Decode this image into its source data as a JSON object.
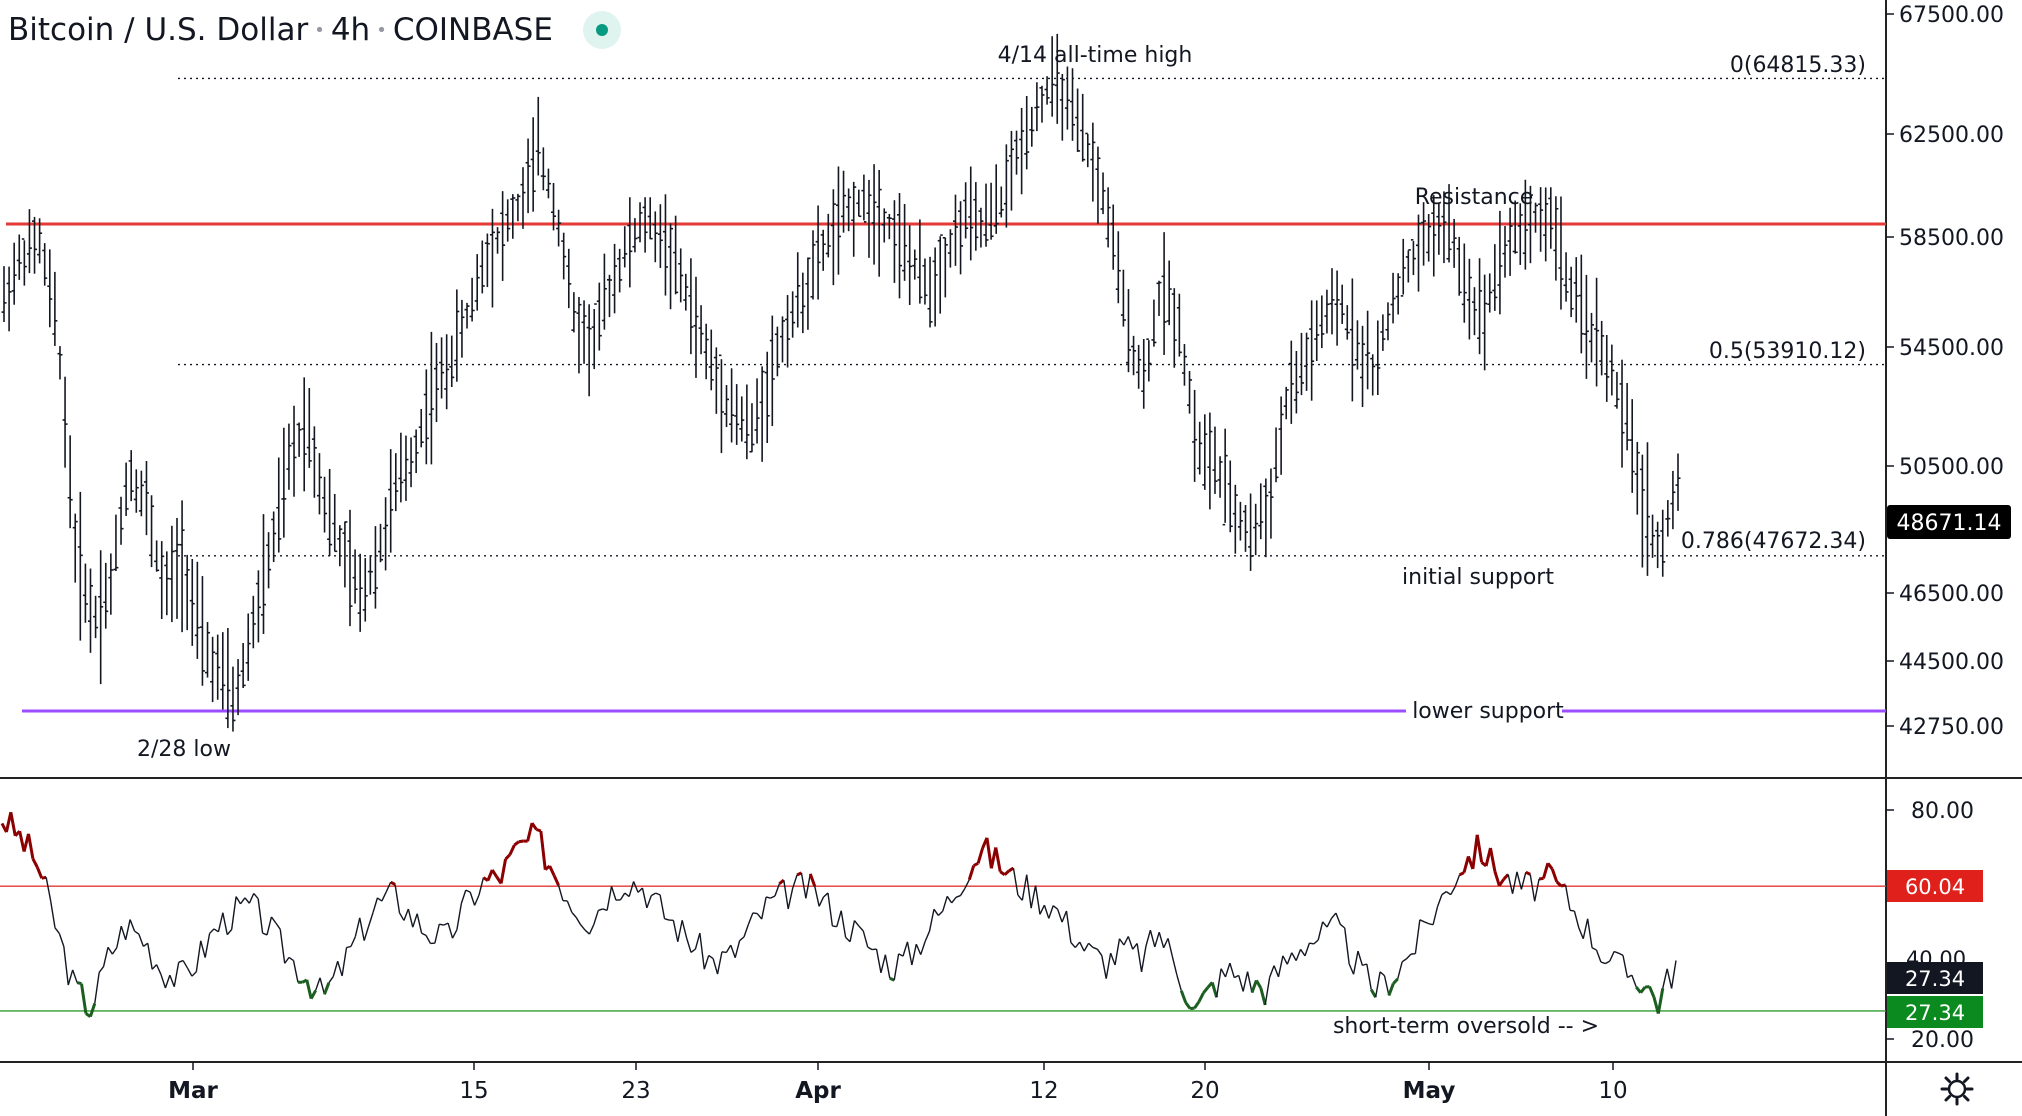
{
  "header": {
    "symbol": "Bitcoin / U.S. Dollar",
    "interval": "4h",
    "exchange": "COINBASE"
  },
  "chart_data": [
    {
      "type": "candlestick",
      "title": "Bitcoin / U.S. Dollar · 4h · COINBASE",
      "x_ticks": [
        "Mar",
        "15",
        "23",
        "Apr",
        "12",
        "20",
        "May",
        "10"
      ],
      "y_ticks": [
        "67500.00",
        "62500.00",
        "58500.00",
        "54500.00",
        "50500.00",
        "46500.00",
        "44500.00",
        "42750.00"
      ],
      "current_price": "48671.14",
      "price_path": [
        56200,
        57800,
        58300,
        55100,
        48000,
        45700,
        46800,
        50400,
        49300,
        46500,
        47700,
        45200,
        44200,
        43400,
        45600,
        47800,
        50600,
        52100,
        49400,
        47800,
        46400,
        47700,
        49800,
        50900,
        52900,
        54000,
        55600,
        57800,
        58700,
        59800,
        61900,
        59600,
        55600,
        54600,
        56600,
        58200,
        59100,
        58500,
        57000,
        55200,
        53400,
        52300,
        51600,
        53500,
        55400,
        56600,
        58100,
        59300,
        59800,
        59600,
        58700,
        57500,
        56600,
        58000,
        59300,
        58900,
        59900,
        61900,
        63600,
        64800,
        63200,
        61700,
        59400,
        55400,
        53300,
        56800,
        55300,
        51100,
        50600,
        49100,
        48300,
        49200,
        52600,
        53900,
        55300,
        56100,
        54600,
        53600,
        56300,
        57600,
        58600,
        59100,
        56800,
        55500,
        57800,
        58800,
        59300,
        59100,
        56400,
        55300,
        54100,
        52100,
        49500,
        47700,
        50100
      ],
      "levels": [
        {
          "label": "0(64815.33)",
          "value": 64815.33,
          "style": "dotted"
        },
        {
          "label": "0.5(53910.12)",
          "value": 53910.12,
          "style": "dotted"
        },
        {
          "label": "0.786(47672.34)",
          "value": 47672.34,
          "style": "dotted"
        },
        {
          "label": "Resistance",
          "value": 58900,
          "color": "#e53935"
        },
        {
          "label": "lower support",
          "value": 42750,
          "color": "#9c4dff"
        }
      ],
      "annotations": [
        "4/14 all-time high",
        "Resistance",
        "initial support",
        "lower support",
        "2/28 low"
      ]
    },
    {
      "type": "line",
      "name": "RSI",
      "y_ticks": [
        "80.00",
        "20.00"
      ],
      "upper_band": 60.04,
      "lower_band": 27.34,
      "current_value": "27.34",
      "upper_label": "60.04",
      "lower_label": "27.34",
      "hidden_tick": "40.00",
      "annotation": "short-term oversold -- >",
      "values": [
        78,
        73,
        66,
        50,
        34,
        28,
        42,
        50,
        46,
        38,
        36,
        41,
        49,
        53,
        55,
        49,
        42,
        37,
        31,
        38,
        47,
        55,
        58,
        52,
        48,
        46,
        55,
        61,
        63,
        70,
        73,
        64,
        56,
        51,
        58,
        62,
        60,
        54,
        49,
        44,
        40,
        42,
        49,
        55,
        58,
        60,
        57,
        52,
        48,
        43,
        39,
        42,
        49,
        55,
        63,
        70,
        66,
        61,
        58,
        55,
        49,
        43,
        40,
        44,
        41,
        48,
        39,
        27,
        34,
        38,
        35,
        33,
        40,
        45,
        47,
        49,
        40,
        33,
        36,
        42,
        50,
        58,
        66,
        70,
        64,
        60,
        60,
        62,
        56,
        49,
        42,
        38,
        36,
        30,
        40
      ]
    }
  ],
  "colors": {
    "up": "#131722",
    "resistance": "#e53935",
    "support": "#9c4dff",
    "rsi_overbought": "#8b0000",
    "rsi_oversold": "#1b5e20",
    "rsi_line": "#131722",
    "upper_band_line": "#e53935",
    "lower_band_line": "#2e9e2e",
    "upper_badge": "#e0201b",
    "lower_badge": "#0b8a1f",
    "dark_badge": "#131722",
    "price_badge": "#000000"
  },
  "icons": {
    "status": "status-dot",
    "settings": "gear-icon"
  }
}
